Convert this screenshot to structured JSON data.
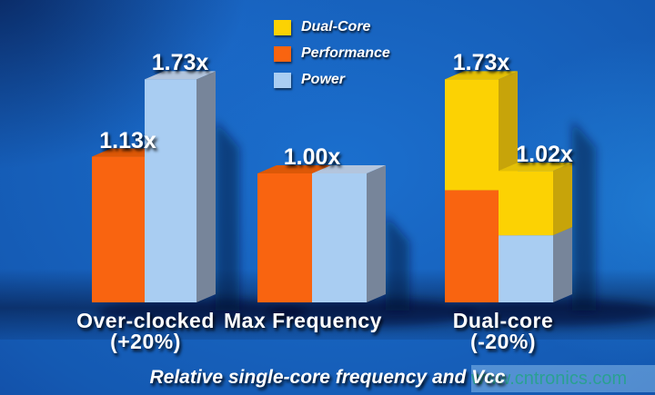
{
  "caption": "Relative single-core frequency and Vcc",
  "watermark": {
    "text": "www.cntronics.com",
    "text_color": "#2aa092",
    "box_color": "rgba(145,195,240,0.5)"
  },
  "legend": {
    "items": [
      {
        "label": "Dual-Core",
        "color": "#fcd203"
      },
      {
        "label": "Performance",
        "color": "#f96410"
      },
      {
        "label": "Power",
        "color": "#a9cdf2"
      }
    ]
  },
  "chart_data": {
    "type": "bar",
    "title": "",
    "xlabel": "Relative single-core frequency and Vcc",
    "ylabel": "",
    "ylim": [
      0,
      1.85
    ],
    "grid": false,
    "legend_position": "top-center",
    "unit_suffix": "x",
    "categories": [
      "Over-clocked (+20%)",
      "Max Frequency",
      "Dual-core (-20%)"
    ],
    "series": [
      {
        "name": "Dual-Core",
        "front": "#fcd203",
        "top": "#e4c006",
        "side": "#c7a40a"
      },
      {
        "name": "Performance",
        "front": "#f96410",
        "top": "#dc5807",
        "side": "#b54a08"
      },
      {
        "name": "Power",
        "front": "#a9cdf2",
        "top": "#b3c5dd",
        "side": "#77859a"
      }
    ],
    "groups": [
      {
        "label_lines": [
          "Over-clocked",
          "(+20%)"
        ],
        "bars": [
          {
            "name": "performance",
            "label": "1.13x",
            "total": 1.13,
            "segments": [
              {
                "series": "Performance",
                "value": 1.13
              }
            ]
          },
          {
            "name": "power",
            "label": "1.73x",
            "total": 1.73,
            "segments": [
              {
                "series": "Power",
                "value": 1.73
              }
            ]
          }
        ]
      },
      {
        "label_lines": [
          "Max Frequency"
        ],
        "bars": [
          {
            "name": "performance",
            "label": "1.00x",
            "label_on_junction": true,
            "total": 1.0,
            "segments": [
              {
                "series": "Performance",
                "value": 1.0
              }
            ]
          },
          {
            "name": "power",
            "label": "",
            "total": 1.0,
            "segments": [
              {
                "series": "Power",
                "value": 1.0
              }
            ]
          }
        ]
      },
      {
        "label_lines": [
          "Dual-core",
          "(-20%)"
        ],
        "bars": [
          {
            "name": "performance",
            "label": "1.73x",
            "total": 1.73,
            "segments": [
              {
                "series": "Performance",
                "value": 0.87
              },
              {
                "series": "Dual-Core",
                "value": 0.86
              }
            ]
          },
          {
            "name": "power",
            "label": "1.02x",
            "total": 1.02,
            "segments": [
              {
                "series": "Power",
                "value": 0.52
              },
              {
                "series": "Dual-Core",
                "value": 0.5
              }
            ]
          }
        ]
      }
    ]
  }
}
